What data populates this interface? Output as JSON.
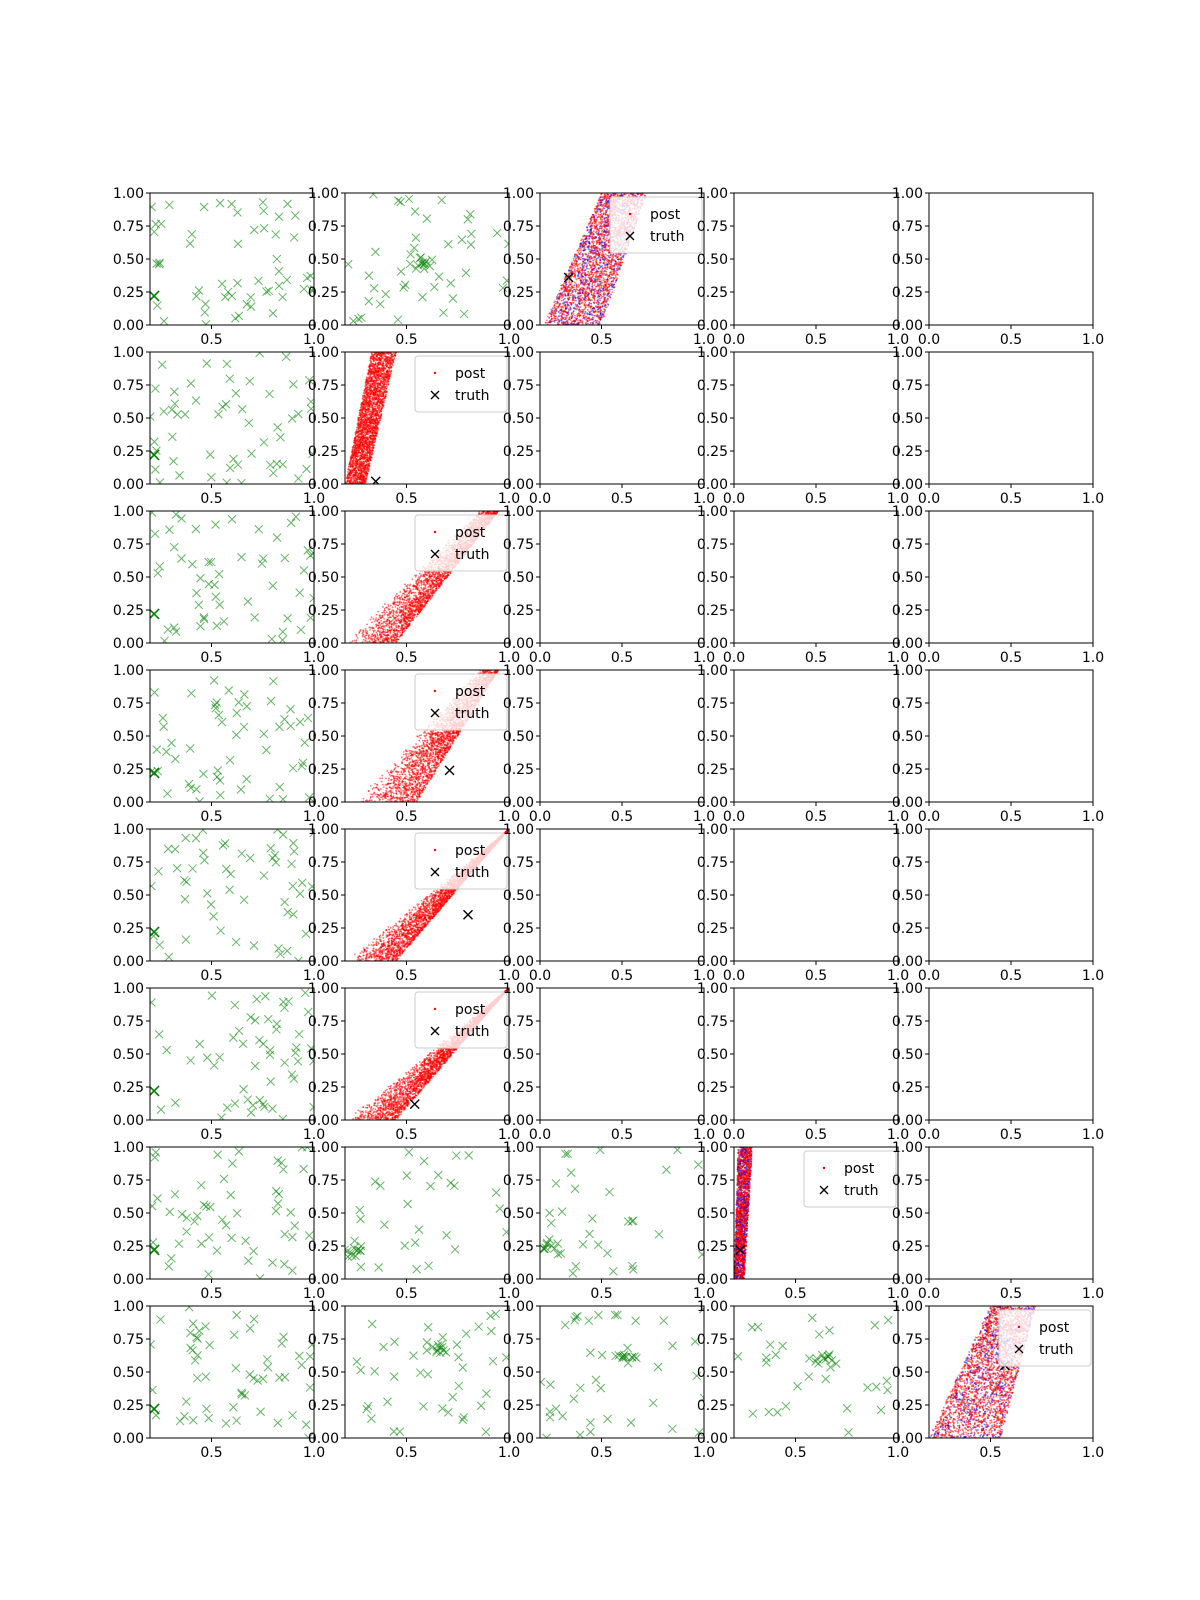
{
  "figure": {
    "rows": 8,
    "cols": 5
  },
  "legend_labels": {
    "post": "post",
    "truth": "truth"
  },
  "colors": {
    "prior": "#008000",
    "post_primary": "#ff0000",
    "post_secondary": "#0000ff",
    "truth": "#000000",
    "axis": "#000000"
  },
  "chart_data": {
    "type": "scatter",
    "title": "",
    "xlabel": "",
    "ylabel": "",
    "x_ticks": [
      "0.0",
      "0.5",
      "1.0"
    ],
    "y_ticks": [
      "0.00",
      "0.25",
      "0.50",
      "0.75",
      "1.00"
    ],
    "panels": [
      {
        "row": 0,
        "col": 0,
        "kind": "prior",
        "xlim": [
          0.2,
          1.0
        ],
        "ylim": [
          0,
          1
        ],
        "x_ticks": [
          "0.5",
          "1.0"
        ],
        "truth": [
          0.22,
          0.22
        ],
        "cluster": null,
        "n": 55,
        "seed": 11
      },
      {
        "row": 0,
        "col": 1,
        "kind": "prior",
        "xlim": [
          0.2,
          1.0
        ],
        "ylim": [
          0,
          1
        ],
        "x_ticks": [
          "0.5",
          "1.0"
        ],
        "truth": null,
        "cluster": [
          0.57,
          0.46
        ],
        "n": 55,
        "seed": 12
      },
      {
        "row": 0,
        "col": 2,
        "kind": "posterior",
        "xlim": [
          0.2,
          1.0
        ],
        "ylim": [
          0,
          1
        ],
        "x_ticks": [
          "0.5",
          "1.0"
        ],
        "truth": [
          0.34,
          0.36
        ],
        "shape": "band",
        "band": [
          0.22,
          0.5,
          0.5,
          0.72
        ],
        "blue": true,
        "legend": "top-right",
        "n": 3000,
        "seed": 13
      },
      {
        "row": 0,
        "col": 3,
        "kind": "empty",
        "xlim": [
          0,
          1
        ],
        "ylim": [
          0,
          1
        ],
        "x_ticks": [
          "0.0",
          "0.5",
          "1.0"
        ]
      },
      {
        "row": 0,
        "col": 4,
        "kind": "empty",
        "xlim": [
          0,
          1
        ],
        "ylim": [
          0,
          1
        ],
        "x_ticks": [
          "0.0",
          "0.5",
          "1.0"
        ]
      },
      {
        "row": 1,
        "col": 0,
        "kind": "prior",
        "xlim": [
          0.2,
          1.0
        ],
        "ylim": [
          0,
          1
        ],
        "x_ticks": [
          "0.5",
          "1.0"
        ],
        "truth": [
          0.22,
          0.22
        ],
        "cluster": null,
        "n": 55,
        "seed": 21
      },
      {
        "row": 1,
        "col": 1,
        "kind": "posterior",
        "xlim": [
          0.2,
          1.0
        ],
        "ylim": [
          0,
          1
        ],
        "x_ticks": [
          "0.5",
          "1.0"
        ],
        "truth": [
          0.35,
          0.02
        ],
        "shape": "band",
        "band": [
          0.2,
          0.33,
          0.3,
          0.45
        ],
        "blue": false,
        "legend": "top-right",
        "n": 3000,
        "seed": 22
      },
      {
        "row": 1,
        "col": 2,
        "kind": "empty",
        "xlim": [
          0,
          1
        ],
        "ylim": [
          0,
          1
        ],
        "x_ticks": [
          "0.0",
          "0.5",
          "1.0"
        ]
      },
      {
        "row": 1,
        "col": 3,
        "kind": "empty",
        "xlim": [
          0,
          1
        ],
        "ylim": [
          0,
          1
        ],
        "x_ticks": [
          "0.0",
          "0.5",
          "1.0"
        ]
      },
      {
        "row": 1,
        "col": 4,
        "kind": "empty",
        "xlim": [
          0,
          1
        ],
        "ylim": [
          0,
          1
        ],
        "x_ticks": [
          "0.0",
          "0.5",
          "1.0"
        ]
      },
      {
        "row": 2,
        "col": 0,
        "kind": "prior",
        "xlim": [
          0.2,
          1.0
        ],
        "ylim": [
          0,
          1
        ],
        "x_ticks": [
          "0.5",
          "1.0"
        ],
        "truth": [
          0.22,
          0.22
        ],
        "cluster": null,
        "n": 55,
        "seed": 31
      },
      {
        "row": 2,
        "col": 1,
        "kind": "posterior",
        "xlim": [
          0.2,
          1.0
        ],
        "ylim": [
          0,
          1
        ],
        "x_ticks": [
          "0.5",
          "1.0"
        ],
        "truth": null,
        "shape": "wedge",
        "band": [
          0.2,
          0.85,
          0.45,
          0.95
        ],
        "blue": false,
        "legend": "top-right",
        "n": 2600,
        "seed": 32
      },
      {
        "row": 2,
        "col": 2,
        "kind": "empty",
        "xlim": [
          0,
          1
        ],
        "ylim": [
          0,
          1
        ],
        "x_ticks": [
          "0.0",
          "0.5",
          "1.0"
        ]
      },
      {
        "row": 2,
        "col": 3,
        "kind": "empty",
        "xlim": [
          0,
          1
        ],
        "ylim": [
          0,
          1
        ],
        "x_ticks": [
          "0.0",
          "0.5",
          "1.0"
        ]
      },
      {
        "row": 2,
        "col": 4,
        "kind": "empty",
        "xlim": [
          0,
          1
        ],
        "ylim": [
          0,
          1
        ],
        "x_ticks": [
          "0.0",
          "0.5",
          "1.0"
        ]
      },
      {
        "row": 3,
        "col": 0,
        "kind": "prior",
        "xlim": [
          0.2,
          1.0
        ],
        "ylim": [
          0,
          1
        ],
        "x_ticks": [
          "0.5",
          "1.0"
        ],
        "truth": [
          0.22,
          0.22
        ],
        "cluster": null,
        "n": 55,
        "seed": 41
      },
      {
        "row": 3,
        "col": 1,
        "kind": "posterior",
        "xlim": [
          0.2,
          1.0
        ],
        "ylim": [
          0,
          1
        ],
        "x_ticks": [
          "0.5",
          "1.0"
        ],
        "truth": [
          0.71,
          0.24
        ],
        "shape": "wedge",
        "band": [
          0.25,
          0.85,
          0.55,
          0.95
        ],
        "blue": false,
        "legend": "top-right",
        "n": 2600,
        "seed": 42
      },
      {
        "row": 3,
        "col": 2,
        "kind": "empty",
        "xlim": [
          0,
          1
        ],
        "ylim": [
          0,
          1
        ],
        "x_ticks": [
          "0.0",
          "0.5",
          "1.0"
        ]
      },
      {
        "row": 3,
        "col": 3,
        "kind": "empty",
        "xlim": [
          0,
          1
        ],
        "ylim": [
          0,
          1
        ],
        "x_ticks": [
          "0.0",
          "0.5",
          "1.0"
        ]
      },
      {
        "row": 3,
        "col": 4,
        "kind": "empty",
        "xlim": [
          0,
          1
        ],
        "ylim": [
          0,
          1
        ],
        "x_ticks": [
          "0.0",
          "0.5",
          "1.0"
        ]
      },
      {
        "row": 4,
        "col": 0,
        "kind": "prior",
        "xlim": [
          0.2,
          1.0
        ],
        "ylim": [
          0,
          1
        ],
        "x_ticks": [
          "0.5",
          "1.0"
        ],
        "truth": [
          0.22,
          0.22
        ],
        "cluster": null,
        "n": 55,
        "seed": 51
      },
      {
        "row": 4,
        "col": 1,
        "kind": "posterior",
        "xlim": [
          0.2,
          1.0
        ],
        "ylim": [
          0,
          1
        ],
        "x_ticks": [
          "0.5",
          "1.0"
        ],
        "truth": [
          0.8,
          0.35
        ],
        "shape": "wedge",
        "band": [
          0.2,
          1.0,
          0.45,
          1.0
        ],
        "blue": false,
        "legend": "top-right",
        "n": 3000,
        "seed": 52
      },
      {
        "row": 4,
        "col": 2,
        "kind": "empty",
        "xlim": [
          0,
          1
        ],
        "ylim": [
          0,
          1
        ],
        "x_ticks": [
          "0.0",
          "0.5",
          "1.0"
        ]
      },
      {
        "row": 4,
        "col": 3,
        "kind": "empty",
        "xlim": [
          0,
          1
        ],
        "ylim": [
          0,
          1
        ],
        "x_ticks": [
          "0.0",
          "0.5",
          "1.0"
        ]
      },
      {
        "row": 4,
        "col": 4,
        "kind": "empty",
        "xlim": [
          0,
          1
        ],
        "ylim": [
          0,
          1
        ],
        "x_ticks": [
          "0.0",
          "0.5",
          "1.0"
        ]
      },
      {
        "row": 5,
        "col": 0,
        "kind": "prior",
        "xlim": [
          0.2,
          1.0
        ],
        "ylim": [
          0,
          1
        ],
        "x_ticks": [
          "0.5",
          "1.0"
        ],
        "truth": [
          0.22,
          0.22
        ],
        "cluster": null,
        "n": 55,
        "seed": 61
      },
      {
        "row": 5,
        "col": 1,
        "kind": "posterior",
        "xlim": [
          0.2,
          1.0
        ],
        "ylim": [
          0,
          1
        ],
        "x_ticks": [
          "0.5",
          "1.0"
        ],
        "truth": [
          0.54,
          0.12
        ],
        "shape": "wedge",
        "band": [
          0.2,
          1.0,
          0.45,
          1.0
        ],
        "blue": false,
        "legend": "top-right",
        "n": 3000,
        "seed": 62
      },
      {
        "row": 5,
        "col": 2,
        "kind": "empty",
        "xlim": [
          0,
          1
        ],
        "ylim": [
          0,
          1
        ],
        "x_ticks": [
          "0.0",
          "0.5",
          "1.0"
        ]
      },
      {
        "row": 5,
        "col": 3,
        "kind": "empty",
        "xlim": [
          0,
          1
        ],
        "ylim": [
          0,
          1
        ],
        "x_ticks": [
          "0.0",
          "0.5",
          "1.0"
        ]
      },
      {
        "row": 5,
        "col": 4,
        "kind": "empty",
        "xlim": [
          0,
          1
        ],
        "ylim": [
          0,
          1
        ],
        "x_ticks": [
          "0.0",
          "0.5",
          "1.0"
        ]
      },
      {
        "row": 6,
        "col": 0,
        "kind": "prior",
        "xlim": [
          0.2,
          1.0
        ],
        "ylim": [
          0,
          1
        ],
        "x_ticks": [
          "0.5",
          "1.0"
        ],
        "truth": [
          0.22,
          0.22
        ],
        "cluster": null,
        "n": 55,
        "seed": 71
      },
      {
        "row": 6,
        "col": 1,
        "kind": "prior",
        "xlim": [
          0.2,
          1.0
        ],
        "ylim": [
          0,
          1
        ],
        "x_ticks": [
          "0.5",
          "1.0"
        ],
        "truth": null,
        "cluster": [
          0.25,
          0.22
        ],
        "n": 40,
        "seed": 72
      },
      {
        "row": 6,
        "col": 2,
        "kind": "prior",
        "xlim": [
          0.2,
          1.0
        ],
        "ylim": [
          0,
          1
        ],
        "x_ticks": [
          "0.5",
          "1.0"
        ],
        "truth": null,
        "cluster": [
          0.25,
          0.24
        ],
        "n": 40,
        "seed": 73
      },
      {
        "row": 6,
        "col": 3,
        "kind": "posterior",
        "xlim": [
          0.2,
          1.0
        ],
        "ylim": [
          0,
          1
        ],
        "x_ticks": [
          "0.5",
          "1.0"
        ],
        "truth": [
          0.23,
          0.22
        ],
        "shape": "band",
        "band": [
          0.2,
          0.22,
          0.25,
          0.29
        ],
        "blue": true,
        "legend": "top-right",
        "n": 2500,
        "seed": 74
      },
      {
        "row": 6,
        "col": 4,
        "kind": "empty",
        "xlim": [
          0,
          1
        ],
        "ylim": [
          0,
          1
        ],
        "x_ticks": [
          "0.0",
          "0.5",
          "1.0"
        ]
      },
      {
        "row": 7,
        "col": 0,
        "kind": "prior",
        "xlim": [
          0.2,
          1.0
        ],
        "ylim": [
          0,
          1
        ],
        "x_ticks": [
          "0.5",
          "1.0"
        ],
        "truth": [
          0.22,
          0.22
        ],
        "cluster": null,
        "n": 55,
        "seed": 81
      },
      {
        "row": 7,
        "col": 1,
        "kind": "prior",
        "xlim": [
          0.2,
          1.0
        ],
        "ylim": [
          0,
          1
        ],
        "x_ticks": [
          "0.5",
          "1.0"
        ],
        "truth": null,
        "cluster": [
          0.65,
          0.68
        ],
        "n": 50,
        "seed": 82
      },
      {
        "row": 7,
        "col": 2,
        "kind": "prior",
        "xlim": [
          0.2,
          1.0
        ],
        "ylim": [
          0,
          1
        ],
        "x_ticks": [
          "0.5",
          "1.0"
        ],
        "truth": null,
        "cluster": [
          0.63,
          0.6
        ],
        "n": 50,
        "seed": 83
      },
      {
        "row": 7,
        "col": 3,
        "kind": "prior",
        "xlim": [
          0.2,
          1.0
        ],
        "ylim": [
          0,
          1
        ],
        "x_ticks": [
          "0.5",
          "1.0"
        ],
        "truth": null,
        "cluster": [
          0.65,
          0.6
        ],
        "n": 40,
        "seed": 84
      },
      {
        "row": 7,
        "col": 4,
        "kind": "posterior",
        "xlim": [
          0.2,
          1.0
        ],
        "ylim": [
          0,
          1
        ],
        "x_ticks": [
          "0.5",
          "1.0"
        ],
        "truth": [
          0.57,
          0.55
        ],
        "shape": "band",
        "band": [
          0.2,
          0.5,
          0.55,
          0.72
        ],
        "blue": true,
        "legend": "top-right",
        "n": 3000,
        "seed": 85
      }
    ]
  }
}
